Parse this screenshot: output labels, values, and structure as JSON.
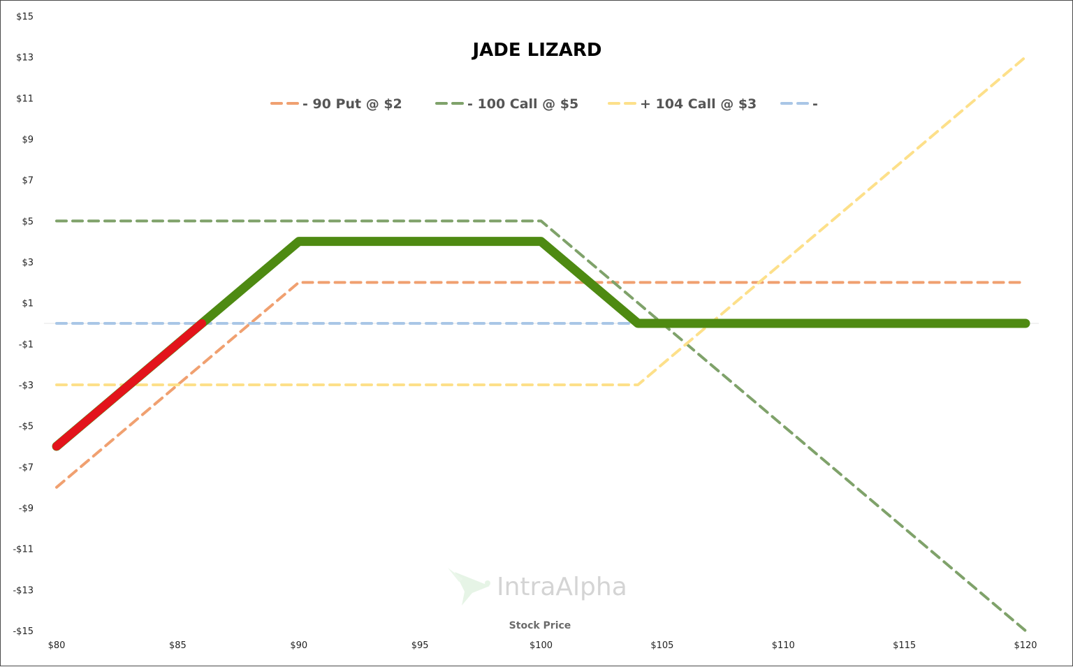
{
  "chart_data": {
    "type": "line",
    "title": "JADE LIZARD",
    "xlabel": "Stock Price",
    "ylabel": "",
    "x_ticks": [
      "$80",
      "$85",
      "$90",
      "$95",
      "$100",
      "$105",
      "$110",
      "$115",
      "$120"
    ],
    "y_ticks": [
      "$15",
      "$13",
      "$11",
      "$9",
      "$7",
      "$5",
      "$3",
      "$1",
      "-$1",
      "-$3",
      "-$5",
      "-$7",
      "-$9",
      "-$11",
      "-$13",
      "-$15"
    ],
    "xlim": [
      80,
      120
    ],
    "ylim": [
      -15,
      15
    ],
    "legend_position": "top",
    "series": [
      {
        "name": "- 90 Put @ $2",
        "color": "#f0a070",
        "style": "dashed",
        "x": [
          80,
          90,
          120
        ],
        "y": [
          -8,
          2,
          2
        ]
      },
      {
        "name": "- 100 Call @ $5",
        "color": "#7fa26a",
        "style": "dashed",
        "x": [
          80,
          100,
          120
        ],
        "y": [
          5,
          5,
          -15
        ]
      },
      {
        "name": "+ 104 Call @ $3",
        "color": "#fde08a",
        "style": "dashed",
        "x": [
          80,
          104,
          120
        ],
        "y": [
          -3,
          -3,
          13
        ]
      },
      {
        "name": "-",
        "color": "#a9c6e6",
        "style": "dashed",
        "x": [
          80,
          104
        ],
        "y": [
          0,
          0
        ]
      }
    ],
    "combined": {
      "color": "#4e8a12",
      "loss_color": "#e3141b",
      "x": [
        80,
        90,
        100,
        104,
        120
      ],
      "y": [
        -6,
        4,
        4,
        0,
        0
      ],
      "loss_segment_x": [
        80,
        86
      ],
      "loss_segment_y": [
        -6,
        0
      ]
    }
  },
  "watermark": {
    "text": "IntraAlpha",
    "icon": "hummingbird-icon"
  }
}
